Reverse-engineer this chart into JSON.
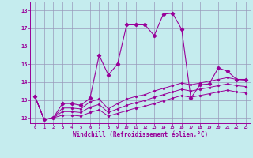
{
  "xlabel": "Windchill (Refroidissement éolien,°C)",
  "xlim": [
    -0.5,
    23.5
  ],
  "ylim": [
    11.7,
    18.5
  ],
  "yticks": [
    12,
    13,
    14,
    15,
    16,
    17,
    18
  ],
  "xticks": [
    0,
    1,
    2,
    3,
    4,
    5,
    6,
    7,
    8,
    9,
    10,
    11,
    12,
    13,
    14,
    15,
    16,
    17,
    18,
    19,
    20,
    21,
    22,
    23
  ],
  "background_color": "#c5ecee",
  "grid_color": "#9999bb",
  "line_color": "#990099",
  "main_y": [
    13.2,
    11.9,
    12.0,
    12.8,
    12.8,
    12.7,
    13.1,
    15.5,
    14.4,
    15.0,
    17.2,
    17.2,
    17.2,
    16.6,
    17.8,
    17.85,
    16.95,
    13.1,
    13.85,
    13.9,
    14.8,
    14.6,
    14.15,
    14.15
  ],
  "line2_y": [
    13.2,
    11.9,
    12.0,
    12.55,
    12.55,
    12.5,
    12.9,
    13.05,
    12.5,
    12.8,
    13.05,
    13.2,
    13.3,
    13.5,
    13.65,
    13.8,
    13.95,
    13.85,
    13.95,
    14.05,
    14.15,
    14.25,
    14.15,
    14.1
  ],
  "line3_y": [
    13.2,
    11.9,
    12.0,
    12.35,
    12.35,
    12.3,
    12.6,
    12.75,
    12.3,
    12.5,
    12.7,
    12.85,
    12.97,
    13.15,
    13.3,
    13.45,
    13.6,
    13.5,
    13.6,
    13.7,
    13.8,
    13.9,
    13.8,
    13.75
  ],
  "line4_y": [
    13.2,
    11.9,
    12.0,
    12.15,
    12.15,
    12.1,
    12.3,
    12.45,
    12.1,
    12.25,
    12.4,
    12.55,
    12.65,
    12.8,
    12.95,
    13.1,
    13.25,
    13.15,
    13.25,
    13.35,
    13.45,
    13.55,
    13.45,
    13.4
  ]
}
